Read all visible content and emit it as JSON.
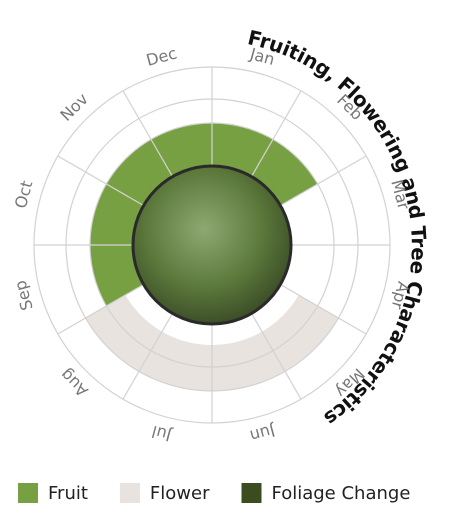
{
  "chart_data": {
    "type": "radial",
    "title": "Fruiting, Flowering and Tree Characteristics",
    "categories": [
      "Jan",
      "Feb",
      "Mar",
      "Apr",
      "May",
      "Jun",
      "Jul",
      "Aug",
      "Sep",
      "Oct",
      "Nov",
      "Dec"
    ],
    "series": [
      {
        "name": "Fruit",
        "color": "#77a042",
        "values": [
          1,
          1,
          0,
          0,
          0,
          0,
          0,
          0,
          1,
          1,
          1,
          1
        ]
      },
      {
        "name": "Flower",
        "color": "#e8e3de",
        "values": [
          0,
          0,
          0,
          0,
          1,
          1,
          1,
          1,
          0,
          0,
          0,
          0
        ]
      },
      {
        "name": "Foliage Change",
        "color": "#3b4d1f",
        "values": [
          0,
          0,
          0,
          0,
          0,
          0,
          0,
          0,
          0,
          0,
          0,
          0
        ]
      }
    ]
  }
}
